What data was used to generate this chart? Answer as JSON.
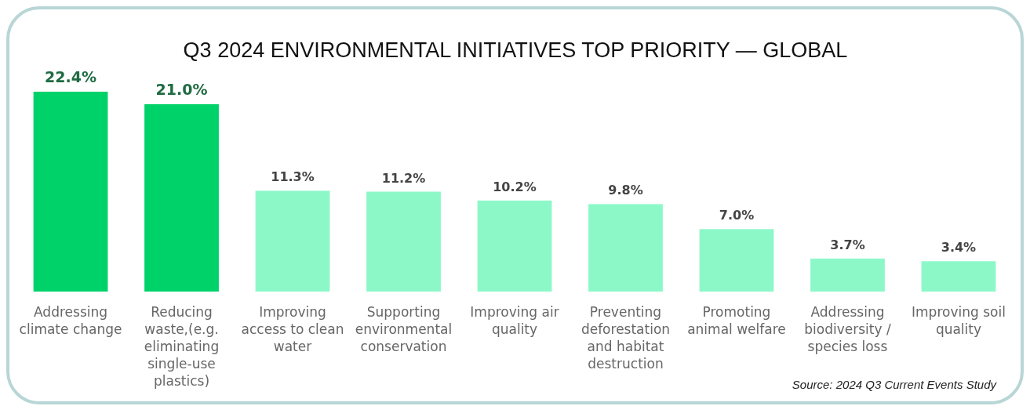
{
  "chart_data": {
    "type": "bar",
    "title": "Q3 2024 ENVIRONMENTAL INITIATIVES TOP PRIORITY — GLOBAL",
    "categories": [
      "Addressing climate change",
      "Reducing waste,(e.g. eliminating single-use plastics)",
      "Improving access to clean water",
      "Supporting environmental conservation",
      "Improving air quality",
      "Preventing deforestation and habitat destruction",
      "Promoting animal welfare",
      "Addressing biodiversity / species loss",
      "Improving soil quality"
    ],
    "values": [
      22.4,
      21.0,
      11.3,
      11.2,
      10.2,
      9.8,
      7.0,
      3.7,
      3.4
    ],
    "colors": [
      "#00d26a",
      "#00d26a",
      "#8cf8c8",
      "#8cf8c8",
      "#8cf8c8",
      "#8cf8c8",
      "#8cf8c8",
      "#8cf8c8",
      "#8cf8c8"
    ],
    "value_labels": [
      "22.4%",
      "21.0%",
      "11.3%",
      "11.2%",
      "10.2%",
      "9.8%",
      "7.0%",
      "3.7%",
      "3.4%"
    ],
    "annotations": [
      "Source: 2024 Q3 Current Events Study"
    ]
  }
}
